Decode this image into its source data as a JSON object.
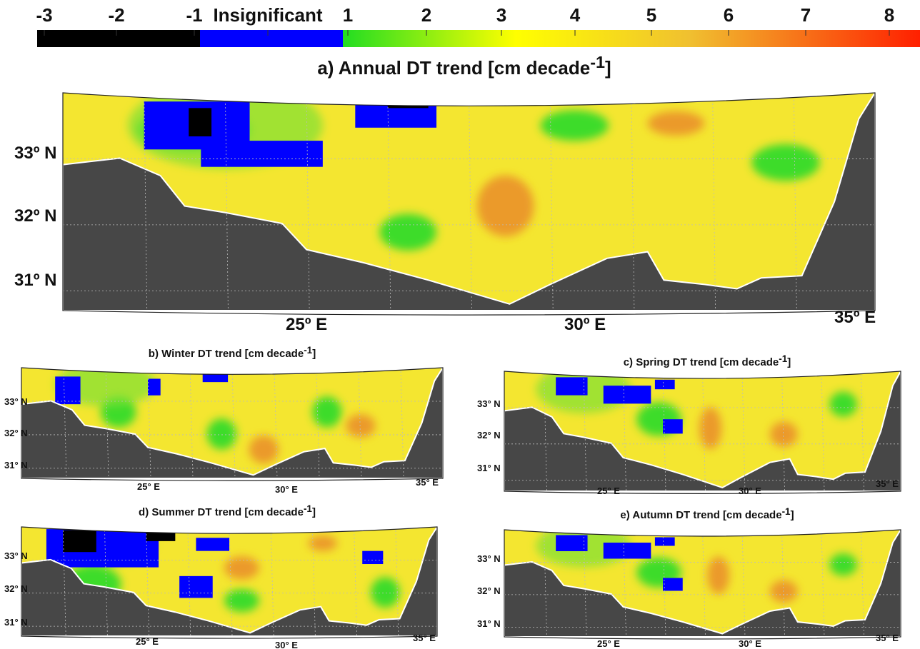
{
  "colorbar": {
    "labels": [
      "-3",
      "-2",
      "-1",
      "Insignificant",
      "1",
      "2",
      "3",
      "4",
      "5",
      "6",
      "7",
      "8"
    ]
  },
  "panels": [
    {
      "title": {
        "text": "a) Annual DT trend [cm decade",
        "superscript": "-1",
        "end": "]"
      },
      "lat_labels": [
        "33º N",
        "32º N",
        "31º N"
      ],
      "lon_labels": [
        "25º E",
        "30º E",
        "35º E"
      ]
    },
    {
      "title": {
        "text": "b) Winter DT trend [cm decade",
        "superscript": "-1",
        "end": "]"
      },
      "lat_labels": [
        "33° N",
        "32° N",
        "31° N"
      ],
      "lon_labels": [
        "25° E",
        "30° E",
        "35° E"
      ]
    },
    {
      "title": {
        "text": "c) Spring DT trend [cm decade",
        "superscript": "-1",
        "end": "]"
      },
      "lat_labels": [
        "33° N",
        "32° N",
        "31° N"
      ],
      "lon_labels": [
        "25° E",
        "30° E",
        "35° E"
      ]
    },
    {
      "title": {
        "text": "d) Summer DT trend [cm decade",
        "superscript": "-1",
        "end": "]"
      },
      "lat_labels": [
        "33° N",
        "32° N",
        "31° N"
      ],
      "lon_labels": [
        "25° E",
        "30° E",
        "35° E"
      ]
    },
    {
      "title": {
        "text": "e) Autumn DT trend [cm decade",
        "superscript": "-1",
        "end": "]"
      },
      "lat_labels": [
        "33° N",
        "32° N",
        "31° N"
      ],
      "lon_labels": [
        "25° E",
        "30° E",
        "35° E"
      ]
    }
  ]
}
